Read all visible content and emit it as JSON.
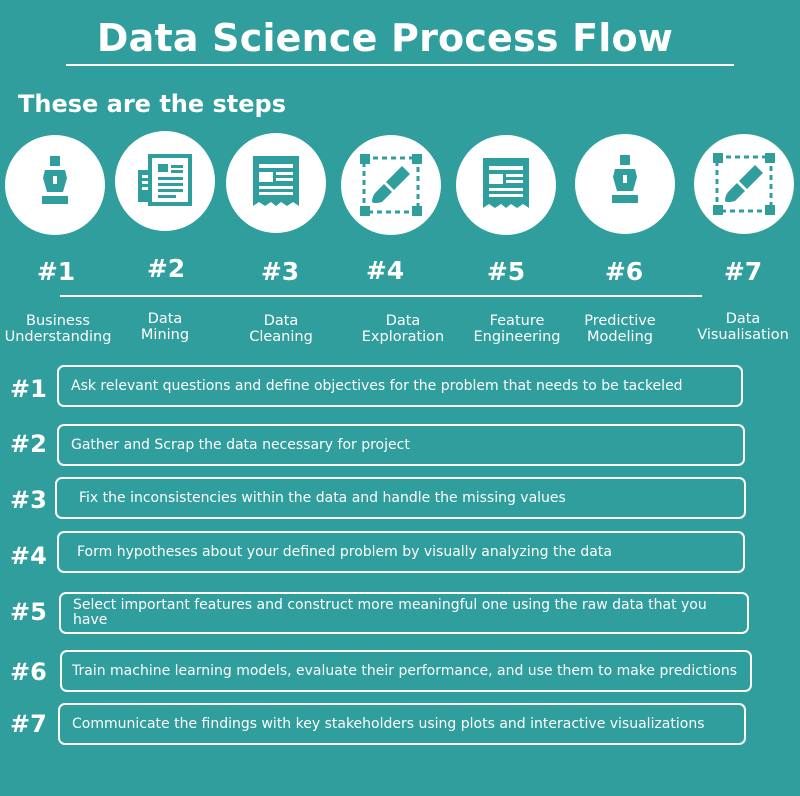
{
  "title": "Data Science Process Flow",
  "subtitle": "These are the steps",
  "colors": {
    "background": "#2f9e9c",
    "accent": "#2f9e9c",
    "foreground": "#ffffff"
  },
  "steps": [
    {
      "number": "#1",
      "label": "Business\nUnderstanding",
      "icon": "pen-nib-icon",
      "description": "Ask relevant questions and define objectives for the problem that needs to be tackeled"
    },
    {
      "number": "#2",
      "label": "Data\nMining",
      "icon": "documents-icon",
      "description": "Gather and Scrap the data necessary for project"
    },
    {
      "number": "#3",
      "label": "Data\nCleaning",
      "icon": "receipt-icon",
      "description": "Fix the inconsistencies within the data and handle the missing values"
    },
    {
      "number": "#4",
      "label": "Data\nExploration",
      "icon": "paint-brush-frame-icon",
      "description": "Form hypotheses about your defined problem by visually analyzing the data"
    },
    {
      "number": "#5",
      "label": "Feature\nEngineering",
      "icon": "receipt-icon",
      "description": "Select important features and construct more meaningful one using the raw data that you have"
    },
    {
      "number": "#6",
      "label": "Predictive\nModeling",
      "icon": "pen-nib-icon",
      "description": "Train machine learning models, evaluate their performance, and use them to make predictions"
    },
    {
      "number": "#7",
      "label": "Data\nVisualisation",
      "icon": "paint-brush-frame-icon",
      "description": "Communicate the findings with key stakeholders using plots and interactive visualizations"
    }
  ]
}
